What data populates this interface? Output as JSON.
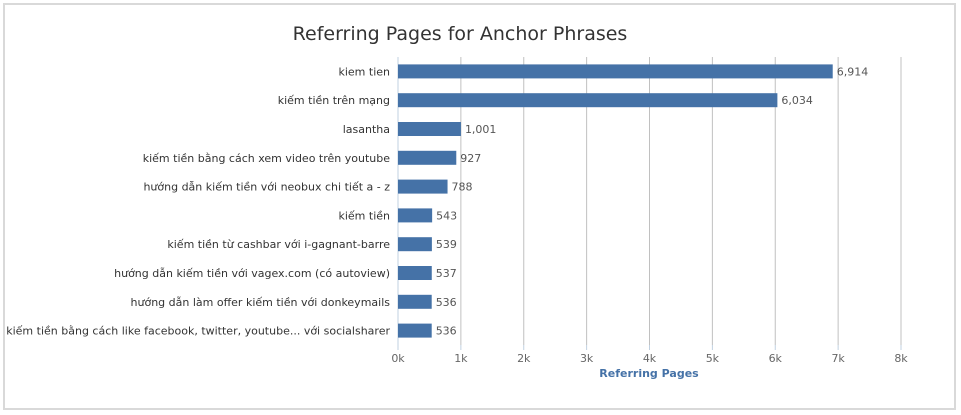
{
  "chart_data": {
    "type": "bar",
    "orientation": "horizontal",
    "title": "Referring Pages for Anchor Phrases",
    "xlabel": "Referring Pages",
    "categories": [
      "kiem tien",
      "kiếm tiền trên mạng",
      "lasantha",
      "kiếm tiền bằng cách xem video trên youtube",
      "hướng dẫn kiếm tiền với neobux chi tiết a - z",
      "kiếm tiền",
      "kiếm tiền từ cashbar với i-gagnant-barre",
      "hướng dẫn kiếm tiền với vagex.com (có autoview)",
      "hướng dẫn làm offer kiếm tiền với donkeymails",
      "kiếm tiền bằng cách like facebook, twitter, youtube... với socialsharer"
    ],
    "values": [
      6914,
      6034,
      1001,
      927,
      788,
      543,
      539,
      537,
      536,
      536
    ],
    "value_labels": [
      "6,914",
      "6,034",
      "1,001",
      "927",
      "788",
      "543",
      "539",
      "537",
      "536",
      "536"
    ],
    "xlim": [
      0,
      8000
    ],
    "xticks": [
      0,
      1000,
      2000,
      3000,
      4000,
      5000,
      6000,
      7000,
      8000
    ],
    "xtick_labels": [
      "0k",
      "1k",
      "2k",
      "3k",
      "4k",
      "5k",
      "6k",
      "7k",
      "8k"
    ],
    "grid": true,
    "colors": {
      "bar": "#4572a7",
      "grid": "#c0c0c0",
      "axis": "#c0d0e0",
      "frame": "#d9d9d9"
    }
  }
}
